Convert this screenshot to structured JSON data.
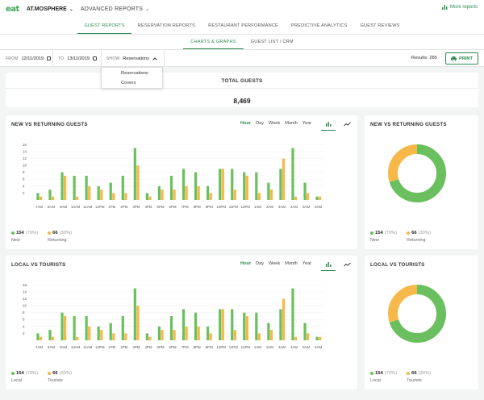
{
  "header": {
    "logo": "eat",
    "venue": "AT.MOSPHERE",
    "advanced_reports": "ADVANCED REPORTS",
    "more_reports": "More reports"
  },
  "main_tabs": [
    {
      "label": "GUEST REPORTS",
      "active": true
    },
    {
      "label": "RESERVATION REPORTS",
      "active": false
    },
    {
      "label": "RESTAURANT PERFORMANCE",
      "active": false
    },
    {
      "label": "PREDICTIVE ANALYTICS",
      "active": false
    },
    {
      "label": "GUEST REVIEWS",
      "active": false
    }
  ],
  "sub_tabs": [
    {
      "label": "CHARTS & GRAPHS",
      "active": true
    },
    {
      "label": "GUEST LIST / CRM",
      "active": false
    }
  ],
  "filters": {
    "from_label": "FROM",
    "from_value": "12/11/2019",
    "to_label": "TO",
    "to_value": "13/11/2019",
    "show_label": "SHOW",
    "show_value": "Reservations",
    "show_options": [
      "Reservations",
      "Covers"
    ],
    "results": "Results: 285",
    "print_label": "PRINT"
  },
  "total": {
    "title": "TOTAL GUESTS",
    "value": "8,469"
  },
  "granularity": [
    "Hour",
    "Day",
    "Week",
    "Month",
    "Year"
  ],
  "colors": {
    "green": "#6abf5e",
    "orange": "#f5b849",
    "accent": "#2e8b4e"
  },
  "panel1": {
    "title": "NEW VS RETURNING GUESTS",
    "donut_title": "NEW VS RETURNING GUESTS",
    "legend": [
      {
        "value": "154",
        "pct": "(70%)",
        "name": "New"
      },
      {
        "value": "66",
        "pct": "(30%)",
        "name": "Returning"
      }
    ]
  },
  "panel2": {
    "title": "LOCAL VS TOURISTS",
    "donut_title": "LOCAL VS TOURISTS",
    "legend": [
      {
        "value": "154",
        "pct": "(70%)",
        "name": "Local"
      },
      {
        "value": "66",
        "pct": "(30%)",
        "name": "Tourists"
      }
    ]
  },
  "chart_data": [
    {
      "type": "bar",
      "title": "NEW VS RETURNING GUESTS",
      "categories": [
        "7AM",
        "8AM",
        "9AM",
        "10AM",
        "11AM",
        "12PM",
        "1PM",
        "2PM",
        "3PM",
        "4PM",
        "5PM",
        "6PM",
        "7PM",
        "8PM",
        "9PM",
        "10PM",
        "11PM",
        "12PM",
        "1AM",
        "2AM",
        "3AM",
        "4AM",
        "5AM",
        "6AM"
      ],
      "series": [
        {
          "name": "New",
          "values": [
            2,
            3,
            8,
            7,
            7,
            4,
            5,
            7,
            15,
            2,
            4,
            7,
            9,
            8,
            4,
            9,
            9,
            8,
            8,
            5,
            9,
            15,
            5,
            1
          ]
        },
        {
          "name": "Returning",
          "values": [
            1,
            1,
            7,
            1,
            4,
            3,
            2,
            2,
            10,
            1,
            3,
            3,
            4,
            4,
            2,
            9,
            3,
            7,
            2,
            3,
            12,
            1,
            2,
            1
          ]
        }
      ],
      "yticks": [
        2,
        4,
        6,
        8,
        10,
        12,
        14,
        16
      ],
      "ylim": [
        0,
        17
      ]
    },
    {
      "type": "pie",
      "title": "NEW VS RETURNING GUESTS",
      "labels": [
        "New",
        "Returning"
      ],
      "values": [
        154,
        66
      ]
    },
    {
      "type": "bar",
      "title": "LOCAL VS TOURISTS",
      "categories": [
        "7AM",
        "8AM",
        "9AM",
        "10AM",
        "11AM",
        "12PM",
        "1PM",
        "2PM",
        "3PM",
        "4PM",
        "5PM",
        "6PM",
        "7PM",
        "8PM",
        "9PM",
        "10PM",
        "11PM",
        "12PM",
        "1AM",
        "2AM",
        "3AM",
        "4AM",
        "5AM",
        "6AM"
      ],
      "series": [
        {
          "name": "Local",
          "values": [
            2,
            3,
            8,
            7,
            7,
            4,
            5,
            7,
            15,
            2,
            4,
            7,
            9,
            8,
            4,
            9,
            9,
            8,
            8,
            5,
            9,
            15,
            5,
            1
          ]
        },
        {
          "name": "Tourists",
          "values": [
            1,
            1,
            7,
            1,
            4,
            3,
            2,
            2,
            10,
            1,
            3,
            3,
            4,
            4,
            2,
            9,
            3,
            7,
            2,
            3,
            12,
            1,
            2,
            1
          ]
        }
      ],
      "yticks": [
        2,
        4,
        6,
        8,
        10,
        12,
        14,
        16
      ],
      "ylim": [
        0,
        17
      ]
    },
    {
      "type": "pie",
      "title": "LOCAL VS TOURISTS",
      "labels": [
        "Local",
        "Tourists"
      ],
      "values": [
        154,
        66
      ]
    }
  ]
}
